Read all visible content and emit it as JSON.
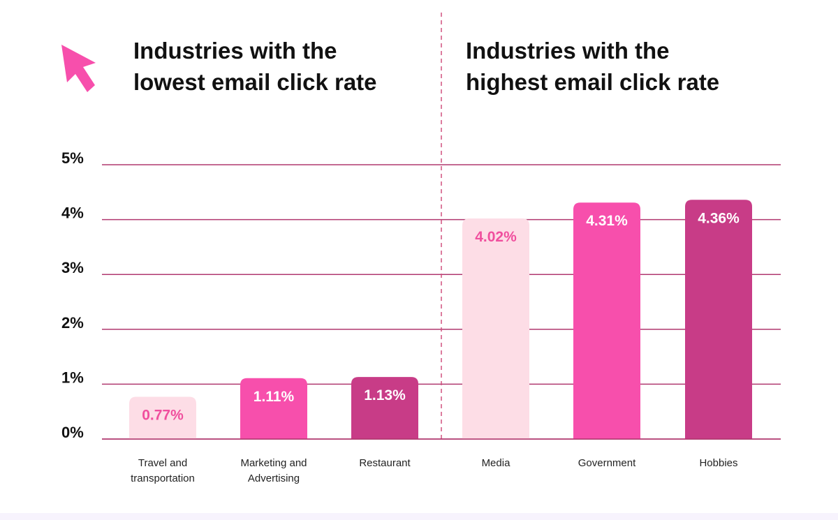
{
  "chart_data": {
    "type": "bar",
    "titles": [
      "Industries with the lowest email click rate",
      "Industries with the highest email click rate"
    ],
    "title_lines": [
      [
        "Industries with the",
        "lowest email click rate"
      ],
      [
        "Industries with the",
        "highest email click rate"
      ]
    ],
    "categories": [
      [
        "Travel and",
        "transportation"
      ],
      [
        "Marketing and",
        "Advertising"
      ],
      [
        "Restaurant"
      ],
      [
        "Media"
      ],
      [
        "Government"
      ],
      [
        "Hobbies"
      ]
    ],
    "values": [
      0.77,
      1.11,
      1.13,
      4.02,
      4.31,
      4.36
    ],
    "data_labels": [
      "0.77%",
      "1.11%",
      "1.13%",
      "4.02%",
      "4.31%",
      "4.36%"
    ],
    "y_ticks": [
      "0%",
      "1%",
      "2%",
      "3%",
      "4%",
      "5%"
    ],
    "ylim": [
      0,
      5
    ],
    "grid": true,
    "bar_colors": [
      "#fddde6",
      "#f74fac",
      "#c83c87",
      "#fddde6",
      "#f74fac",
      "#c83c87"
    ],
    "label_colors": [
      "#f04f9e",
      "#ffffff",
      "#ffffff",
      "#f04f9e",
      "#ffffff",
      "#ffffff"
    ],
    "gridline_color": "#b0386f",
    "divider_color": "#d0507f",
    "accent_icon": {
      "name": "cursor-arrow-icon",
      "color": "#f74fac"
    }
  }
}
